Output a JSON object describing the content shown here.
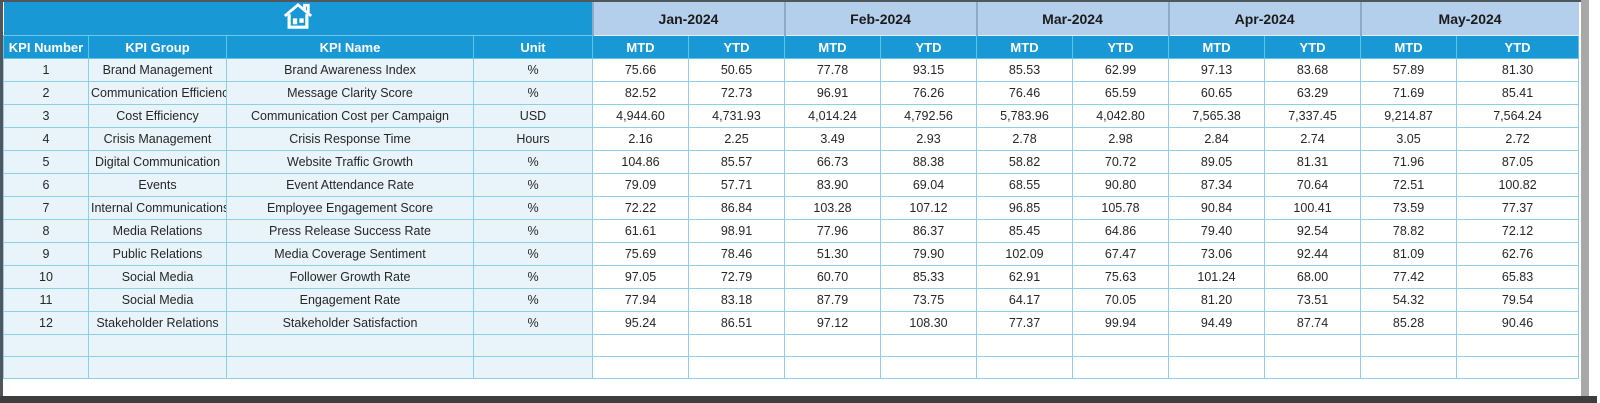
{
  "icons": {
    "home": "home-icon"
  },
  "colors": {
    "header_teal": "#1899d6",
    "month_blue": "#b4cfec",
    "row_tint": "#e9f4fa",
    "grid_border": "#8bd0e7",
    "frame_dark": "#50565c",
    "bottom_bar": "#3e3e3e"
  },
  "table": {
    "months": [
      "Jan-2024",
      "Feb-2024",
      "Mar-2024",
      "Apr-2024",
      "May-2024"
    ],
    "sub_headers": [
      "MTD",
      "YTD"
    ],
    "columns": [
      "KPI Number",
      "KPI Group",
      "KPI Name",
      "Unit"
    ],
    "rows": [
      {
        "number": "1",
        "group": "Brand Management",
        "name": "Brand Awareness Index",
        "unit": "%",
        "values": [
          "75.66",
          "50.65",
          "77.78",
          "93.15",
          "85.53",
          "62.99",
          "97.13",
          "83.68",
          "57.89",
          "81.30"
        ]
      },
      {
        "number": "2",
        "group": "Communication Efficiency",
        "name": "Message Clarity Score",
        "unit": "%",
        "values": [
          "82.52",
          "72.73",
          "96.91",
          "76.26",
          "76.46",
          "65.59",
          "60.65",
          "63.29",
          "71.69",
          "85.41"
        ]
      },
      {
        "number": "3",
        "group": "Cost Efficiency",
        "name": "Communication Cost per Campaign",
        "unit": "USD",
        "values": [
          "4,944.60",
          "4,731.93",
          "4,014.24",
          "4,792.56",
          "5,783.96",
          "4,042.80",
          "7,565.38",
          "7,337.45",
          "9,214.87",
          "7,564.24"
        ]
      },
      {
        "number": "4",
        "group": "Crisis Management",
        "name": "Crisis Response Time",
        "unit": "Hours",
        "values": [
          "2.16",
          "2.25",
          "3.49",
          "2.93",
          "2.78",
          "2.98",
          "2.84",
          "2.74",
          "3.05",
          "2.72"
        ]
      },
      {
        "number": "5",
        "group": "Digital Communication",
        "name": "Website Traffic Growth",
        "unit": "%",
        "values": [
          "104.86",
          "85.57",
          "66.73",
          "88.38",
          "58.82",
          "70.72",
          "89.05",
          "81.31",
          "71.96",
          "87.05"
        ]
      },
      {
        "number": "6",
        "group": "Events",
        "name": "Event Attendance Rate",
        "unit": "%",
        "values": [
          "79.09",
          "57.71",
          "83.90",
          "69.04",
          "68.55",
          "90.80",
          "87.34",
          "70.64",
          "72.51",
          "100.82"
        ]
      },
      {
        "number": "7",
        "group": "Internal Communications",
        "name": "Employee Engagement Score",
        "unit": "%",
        "values": [
          "72.22",
          "86.84",
          "103.28",
          "107.12",
          "96.85",
          "105.78",
          "90.84",
          "100.41",
          "73.59",
          "77.37"
        ]
      },
      {
        "number": "8",
        "group": "Media Relations",
        "name": "Press Release Success Rate",
        "unit": "%",
        "values": [
          "61.61",
          "98.91",
          "77.96",
          "86.37",
          "85.45",
          "64.86",
          "79.40",
          "92.54",
          "78.82",
          "72.12"
        ]
      },
      {
        "number": "9",
        "group": "Public Relations",
        "name": "Media Coverage Sentiment",
        "unit": "%",
        "values": [
          "75.69",
          "78.46",
          "51.30",
          "79.90",
          "102.09",
          "67.47",
          "73.06",
          "92.44",
          "81.09",
          "62.76"
        ]
      },
      {
        "number": "10",
        "group": "Social Media",
        "name": "Follower Growth Rate",
        "unit": "%",
        "values": [
          "97.05",
          "72.79",
          "60.70",
          "85.33",
          "62.91",
          "75.63",
          "101.24",
          "68.00",
          "77.42",
          "65.83"
        ]
      },
      {
        "number": "11",
        "group": "Social Media",
        "name": "Engagement Rate",
        "unit": "%",
        "values": [
          "77.94",
          "83.18",
          "87.79",
          "73.75",
          "64.17",
          "70.05",
          "81.20",
          "73.51",
          "54.32",
          "79.54"
        ]
      },
      {
        "number": "12",
        "group": "Stakeholder Relations",
        "name": "Stakeholder Satisfaction",
        "unit": "%",
        "values": [
          "95.24",
          "86.51",
          "97.12",
          "108.30",
          "77.37",
          "99.94",
          "94.49",
          "87.74",
          "85.28",
          "90.46"
        ]
      }
    ],
    "empty_row_count": 2
  }
}
